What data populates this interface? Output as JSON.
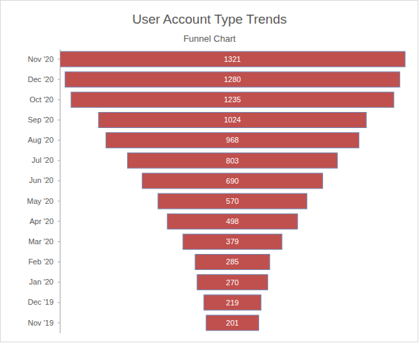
{
  "chart_data": {
    "type": "funnel",
    "title": "User Account Type Trends",
    "subtitle": "Funnel Chart",
    "orientation": "horizontal",
    "categories": [
      "Nov '20",
      "Dec '20",
      "Oct '20",
      "Sep '20",
      "Aug '20",
      "Jul '20",
      "Jun '20",
      "May '20",
      "Apr '20",
      "Mar '20",
      "Feb '20",
      "Jan '20",
      "Dec '19",
      "Nov '19"
    ],
    "values": [
      1321,
      1280,
      1235,
      1024,
      968,
      803,
      690,
      570,
      498,
      379,
      285,
      270,
      219,
      201
    ],
    "color": "#c0504d",
    "data_labels": true,
    "tick_labels": "y"
  }
}
